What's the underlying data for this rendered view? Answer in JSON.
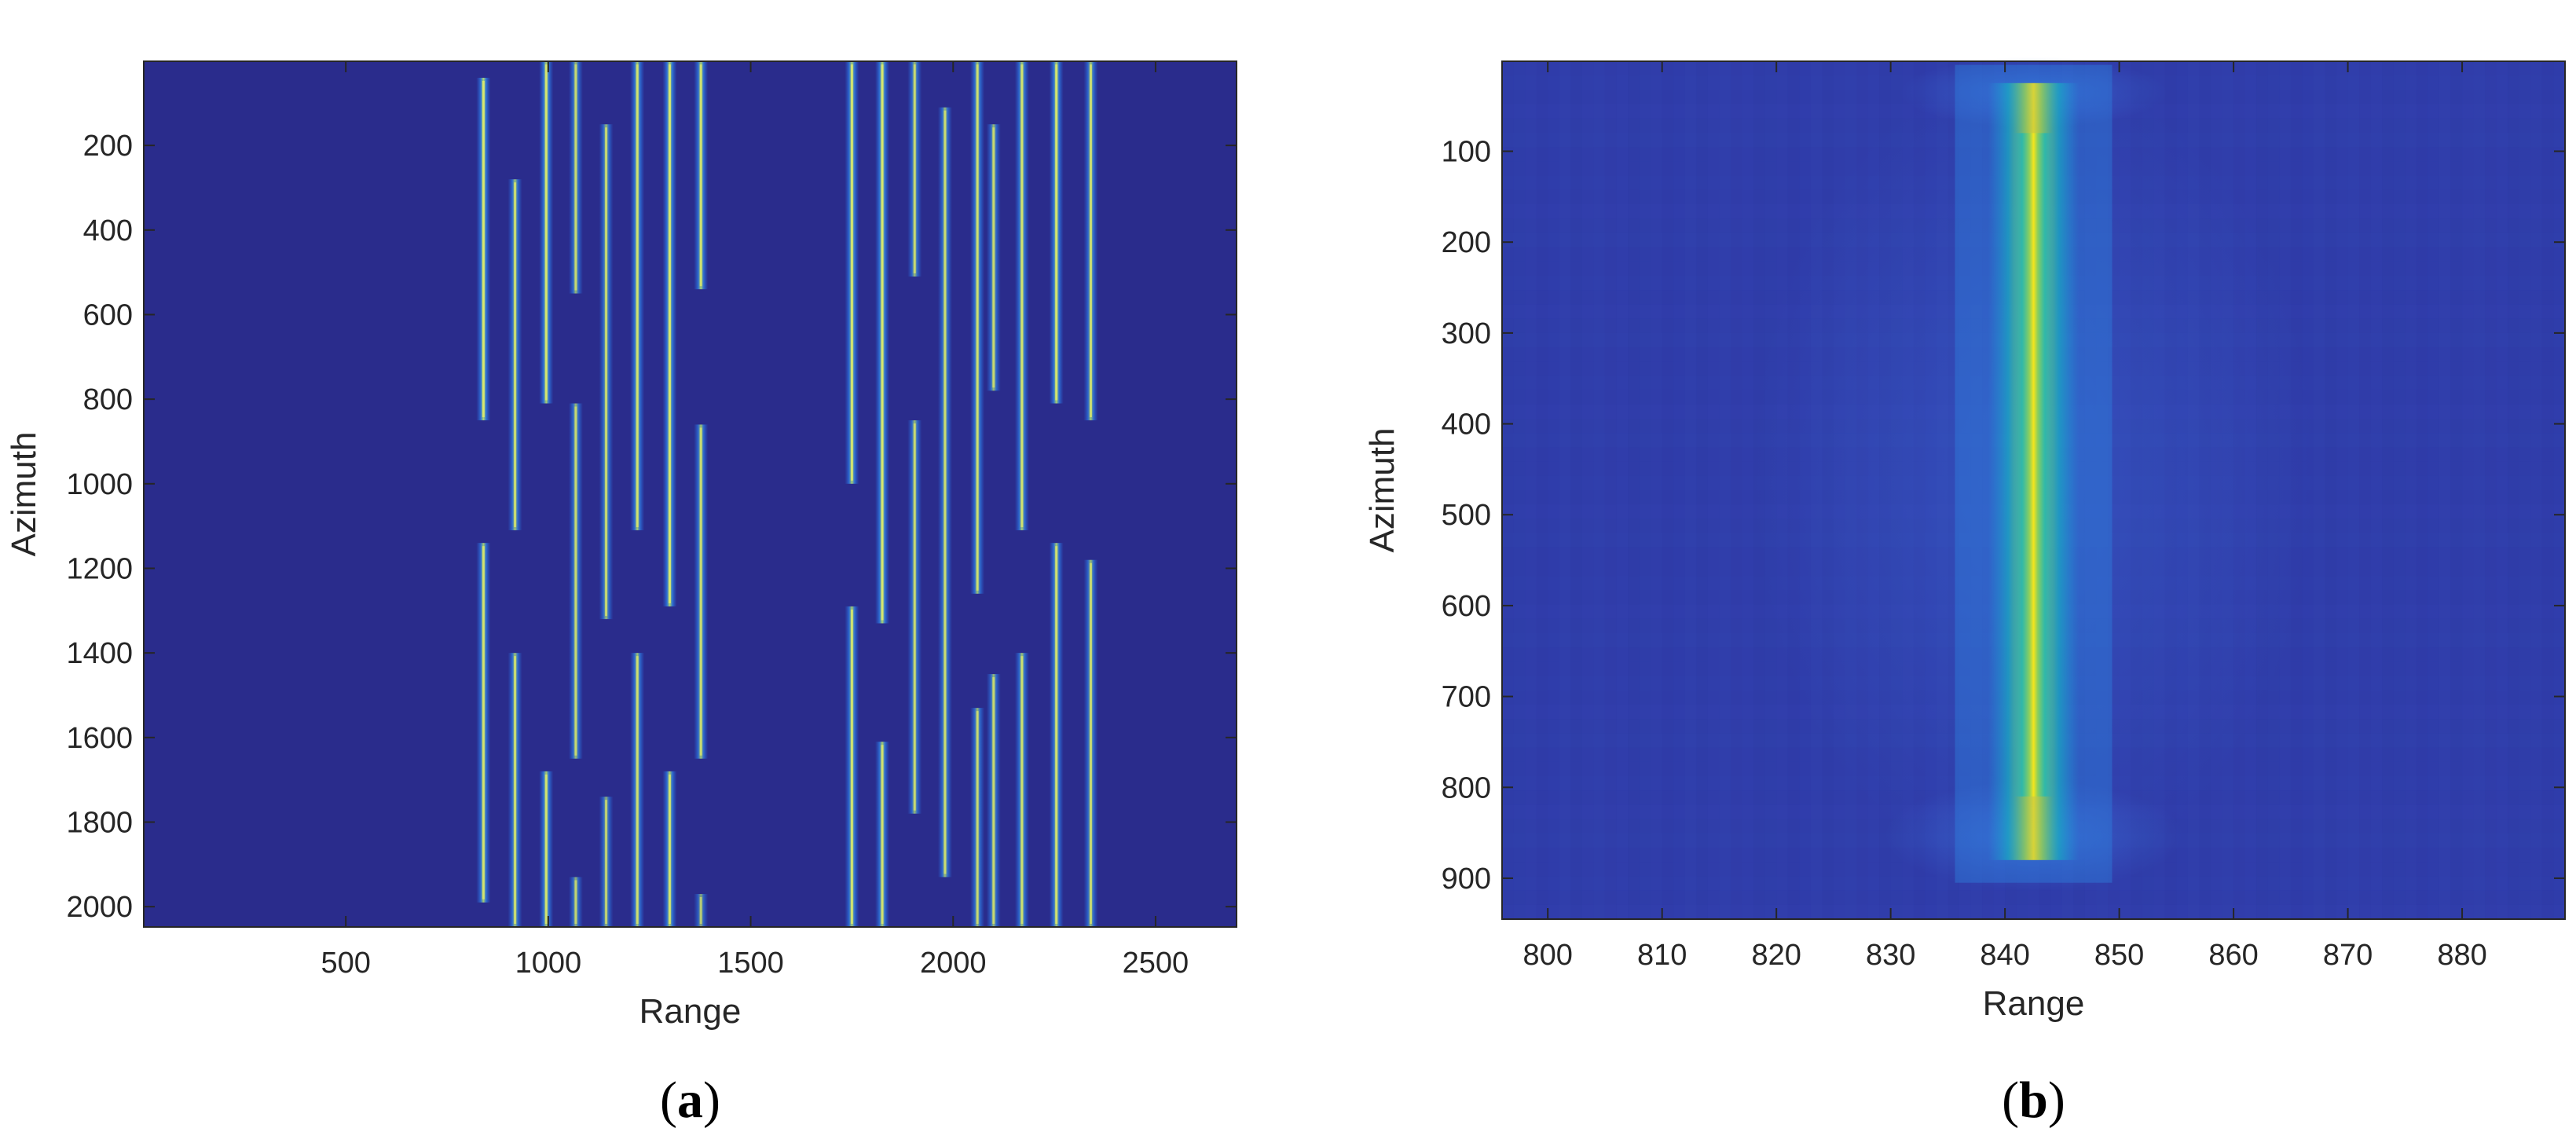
{
  "chart_data": [
    {
      "type": "heatmap",
      "panel_label": "(a)",
      "panel_letter": "a",
      "xlabel": "Range",
      "ylabel": "Azimuth",
      "xlim": [
        1,
        2700
      ],
      "ylim": [
        2048,
        1
      ],
      "y_reversed": true,
      "xticks": [
        500,
        1000,
        1500,
        2000,
        2500
      ],
      "yticks": [
        200,
        400,
        600,
        800,
        1000,
        1200,
        1400,
        1600,
        1800,
        2000
      ],
      "background_color": "#2a2c8c",
      "colormap": "parula",
      "grid": false,
      "targets": [
        {
          "range": 840,
          "azimuth_start": 40,
          "azimuth_end": 850,
          "intensity": 0.95
        },
        {
          "range": 840,
          "azimuth_start": 1140,
          "azimuth_end": 1990,
          "intensity": 0.9
        },
        {
          "range": 918,
          "azimuth_start": 280,
          "azimuth_end": 1110,
          "intensity": 0.85
        },
        {
          "range": 918,
          "azimuth_start": 1400,
          "azimuth_end": 2048,
          "intensity": 0.85
        },
        {
          "range": 995,
          "azimuth_start": 1,
          "azimuth_end": 810,
          "intensity": 0.92
        },
        {
          "range": 995,
          "azimuth_start": 1680,
          "azimuth_end": 2048,
          "intensity": 0.9
        },
        {
          "range": 1068,
          "azimuth_start": 1,
          "azimuth_end": 550,
          "intensity": 0.8
        },
        {
          "range": 1068,
          "azimuth_start": 810,
          "azimuth_end": 1650,
          "intensity": 0.8
        },
        {
          "range": 1068,
          "azimuth_start": 1930,
          "azimuth_end": 2048,
          "intensity": 0.75
        },
        {
          "range": 1143,
          "azimuth_start": 150,
          "azimuth_end": 1320,
          "intensity": 0.8
        },
        {
          "range": 1143,
          "azimuth_start": 1740,
          "azimuth_end": 2048,
          "intensity": 0.75
        },
        {
          "range": 1220,
          "azimuth_start": 1,
          "azimuth_end": 1110,
          "intensity": 0.88
        },
        {
          "range": 1220,
          "azimuth_start": 1400,
          "azimuth_end": 2048,
          "intensity": 0.85
        },
        {
          "range": 1300,
          "azimuth_start": 1,
          "azimuth_end": 1290,
          "intensity": 0.95
        },
        {
          "range": 1300,
          "azimuth_start": 1680,
          "azimuth_end": 2048,
          "intensity": 0.9
        },
        {
          "range": 1377,
          "azimuth_start": 1,
          "azimuth_end": 540,
          "intensity": 0.9
        },
        {
          "range": 1377,
          "azimuth_start": 860,
          "azimuth_end": 1650,
          "intensity": 0.85
        },
        {
          "range": 1377,
          "azimuth_start": 1970,
          "azimuth_end": 2048,
          "intensity": 0.7
        },
        {
          "range": 1750,
          "azimuth_start": 1,
          "azimuth_end": 1000,
          "intensity": 0.92
        },
        {
          "range": 1750,
          "azimuth_start": 1290,
          "azimuth_end": 2048,
          "intensity": 0.9
        },
        {
          "range": 1825,
          "azimuth_start": 1,
          "azimuth_end": 1330,
          "intensity": 0.95
        },
        {
          "range": 1825,
          "azimuth_start": 1610,
          "azimuth_end": 2048,
          "intensity": 0.9
        },
        {
          "range": 1905,
          "azimuth_start": 1,
          "azimuth_end": 510,
          "intensity": 0.8
        },
        {
          "range": 1905,
          "azimuth_start": 850,
          "azimuth_end": 1780,
          "intensity": 0.8
        },
        {
          "range": 1980,
          "azimuth_start": 110,
          "azimuth_end": 1930,
          "intensity": 0.82
        },
        {
          "range": 2060,
          "azimuth_start": 1,
          "azimuth_end": 1260,
          "intensity": 0.85
        },
        {
          "range": 2060,
          "azimuth_start": 1530,
          "azimuth_end": 2048,
          "intensity": 0.8
        },
        {
          "range": 2100,
          "azimuth_start": 150,
          "azimuth_end": 780,
          "intensity": 0.8
        },
        {
          "range": 2100,
          "azimuth_start": 1450,
          "azimuth_end": 2048,
          "intensity": 0.8
        },
        {
          "range": 2170,
          "azimuth_start": 1,
          "azimuth_end": 1110,
          "intensity": 0.88
        },
        {
          "range": 2170,
          "azimuth_start": 1400,
          "azimuth_end": 2048,
          "intensity": 0.85
        },
        {
          "range": 2255,
          "azimuth_start": 1,
          "azimuth_end": 810,
          "intensity": 0.92
        },
        {
          "range": 2255,
          "azimuth_start": 1140,
          "azimuth_end": 2048,
          "intensity": 0.88
        },
        {
          "range": 2340,
          "azimuth_start": 1,
          "azimuth_end": 850,
          "intensity": 0.85
        },
        {
          "range": 2340,
          "azimuth_start": 1180,
          "azimuth_end": 2048,
          "intensity": 0.82
        }
      ]
    },
    {
      "type": "heatmap",
      "panel_label": "(b)",
      "panel_letter": "b",
      "xlabel": "Range",
      "ylabel": "Azimuth",
      "xlim": [
        796,
        889
      ],
      "ylim": [
        945,
        1
      ],
      "y_reversed": true,
      "xticks": [
        800,
        810,
        820,
        830,
        840,
        850,
        860,
        870,
        880
      ],
      "yticks": [
        100,
        200,
        300,
        400,
        500,
        600,
        700,
        800,
        900
      ],
      "background_color": "#2f3aa6",
      "colormap": "parula",
      "grid": false,
      "target": {
        "range_center": 842.5,
        "azimuth_start": 80,
        "azimuth_end": 810,
        "peak_intensity": 1.0
      }
    }
  ]
}
